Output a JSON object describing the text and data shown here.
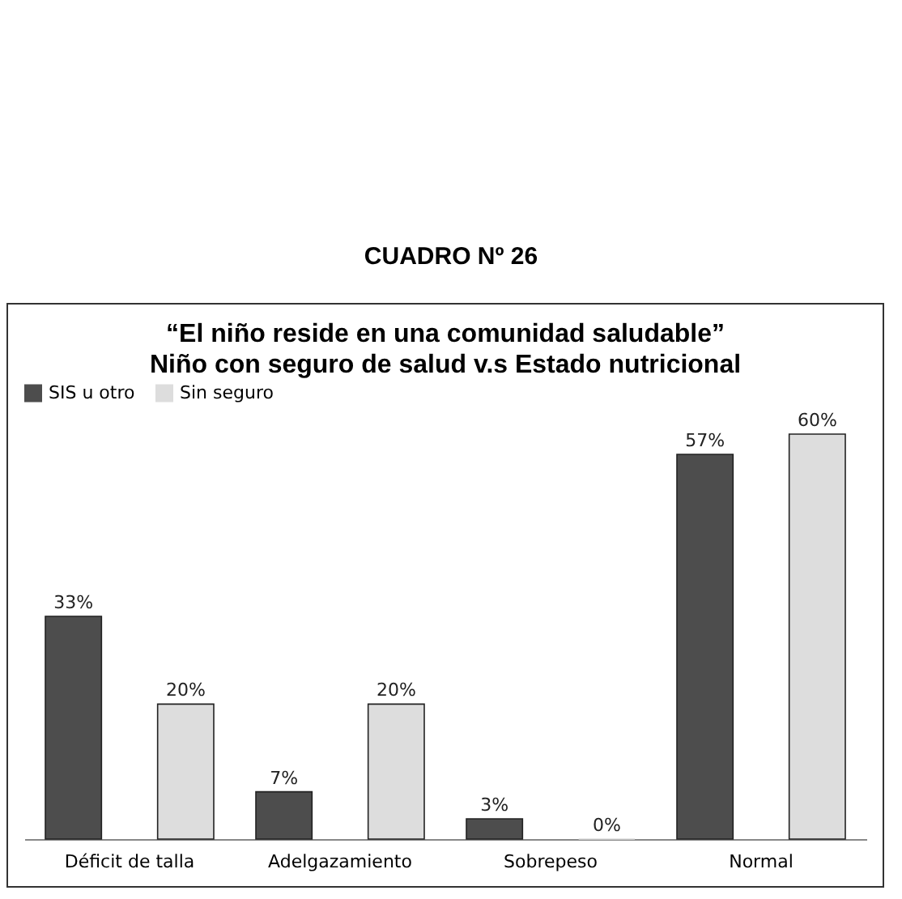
{
  "chart_data": {
    "type": "bar",
    "title": "“El niño reside en una comunidad saludable”",
    "subtitle": "Niño con seguro de salud v.s Estado nutricional",
    "annotations": [
      "CUADRO Nº 26"
    ],
    "categories": [
      "Déficit de talla",
      "Adelgazamiento",
      "Sobrepeso",
      "Normal"
    ],
    "series": [
      {
        "name": "SIS u otro",
        "color": "#4d4d4d",
        "values": [
          33,
          7,
          3,
          57
        ],
        "value_labels": [
          "33%",
          "7%",
          "3%",
          "57%"
        ]
      },
      {
        "name": "Sin seguro",
        "color": "#dddddd",
        "values": [
          20,
          20,
          0,
          60
        ],
        "value_labels": [
          "20%",
          "20%",
          "0%",
          "60%"
        ]
      }
    ],
    "legend": "top",
    "grid": false
  }
}
